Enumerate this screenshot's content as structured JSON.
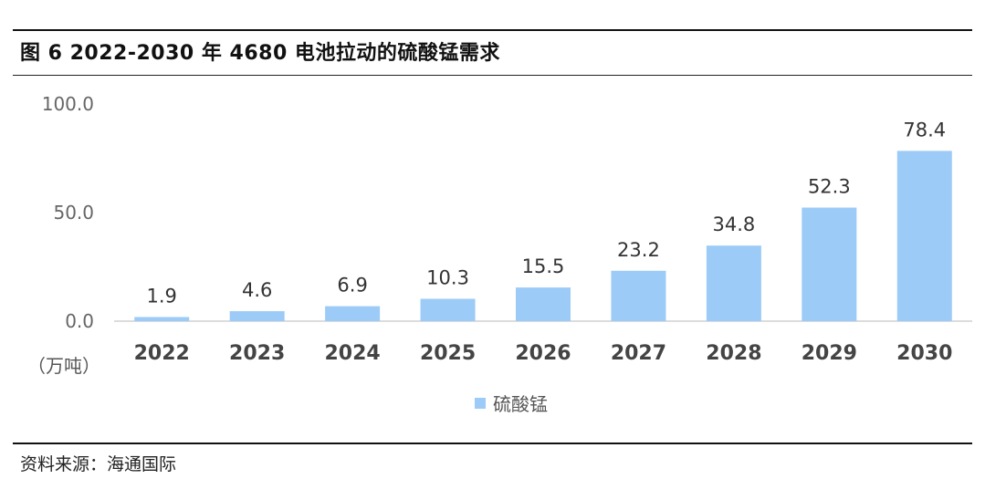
{
  "title": "图 6 2022-2030 年 4680 电池拉动的硫酸锰需求",
  "source": "资料来源：海通国际",
  "chart_data": {
    "type": "bar",
    "categories": [
      "2022",
      "2023",
      "2024",
      "2025",
      "2026",
      "2027",
      "2028",
      "2029",
      "2030"
    ],
    "series": [
      {
        "name": "硫酸锰",
        "values": [
          1.9,
          4.6,
          6.9,
          10.3,
          15.5,
          23.2,
          34.8,
          52.3,
          78.4
        ]
      }
    ],
    "data_labels": [
      "1.9",
      "4.6",
      "6.9",
      "10.3",
      "15.5",
      "23.2",
      "34.8",
      "52.3",
      "78.4"
    ],
    "yticks": [
      "0.0",
      "50.0",
      "100.0"
    ],
    "ylim": [
      0,
      100
    ],
    "unit_label": "（万吨）",
    "legend_position": "bottom",
    "bar_color": "#9ccbf8",
    "grid": false
  }
}
